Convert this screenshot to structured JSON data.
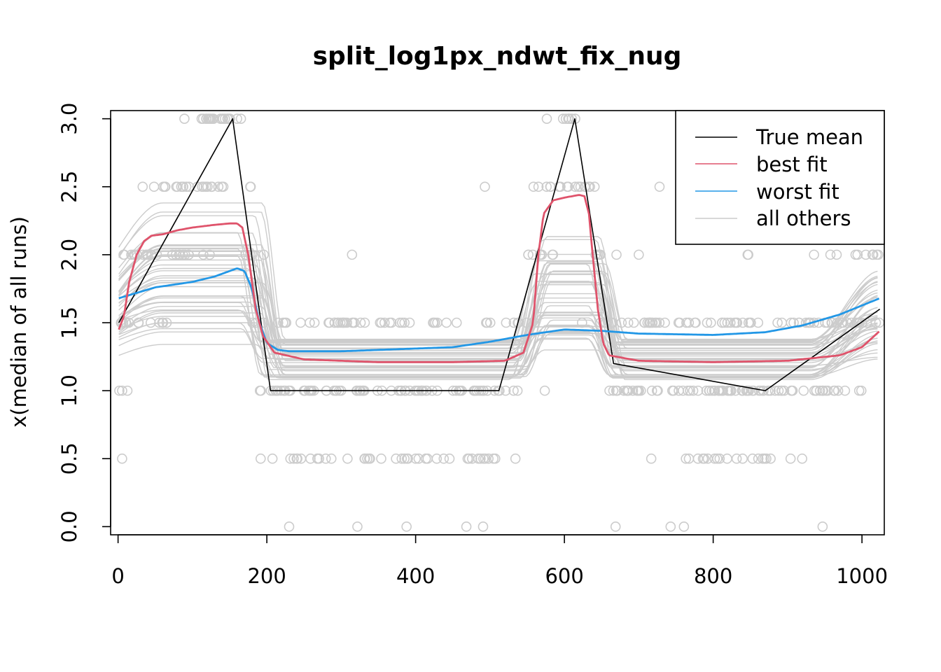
{
  "chart_data": {
    "type": "line",
    "title": "split_log1px_ndwt_fix_nug",
    "xlabel": "",
    "ylabel": "x(median of all runs)",
    "xlim": [
      -10,
      1030
    ],
    "ylim": [
      -0.06,
      3.06
    ],
    "x_ticks": [
      0,
      200,
      400,
      600,
      800,
      1000
    ],
    "y_ticks": [
      0.0,
      0.5,
      1.0,
      1.5,
      2.0,
      2.5,
      3.0
    ],
    "x_tick_labels": [
      "0",
      "200",
      "400",
      "600",
      "800",
      "1000"
    ],
    "y_tick_labels": [
      "0.0",
      "0.5",
      "1.0",
      "1.5",
      "2.0",
      "2.5",
      "3.0"
    ],
    "grid": false,
    "legend": {
      "position": "top-right",
      "entries": [
        {
          "label": "True mean",
          "color": "#000000"
        },
        {
          "label": "best fit",
          "color": "#DF536B"
        },
        {
          "label": "worst fit",
          "color": "#2297E6"
        },
        {
          "label": "all others",
          "color": "#CCCCCC"
        }
      ]
    },
    "true_mean": {
      "name": "True mean",
      "color": "#000000",
      "x": [
        1,
        154,
        205,
        512,
        614,
        666,
        870,
        1024
      ],
      "y": [
        1.5,
        3.0,
        1.0,
        1.0,
        3.0,
        1.2,
        1.0,
        1.6
      ]
    },
    "best_fit": {
      "name": "best fit",
      "color": "#DF536B",
      "x": [
        1,
        8,
        15,
        25,
        35,
        45,
        60,
        80,
        100,
        130,
        150,
        160,
        167,
        175,
        185,
        195,
        210,
        250,
        350,
        450,
        520,
        545,
        558,
        565,
        572,
        585,
        600,
        610,
        620,
        627,
        633,
        638,
        645,
        652,
        660,
        700,
        800,
        900,
        970,
        1000,
        1024
      ],
      "y": [
        1.45,
        1.55,
        1.8,
        2.0,
        2.1,
        2.14,
        2.15,
        2.18,
        2.2,
        2.22,
        2.23,
        2.23,
        2.2,
        2.0,
        1.6,
        1.4,
        1.28,
        1.23,
        1.21,
        1.21,
        1.22,
        1.28,
        1.5,
        2.0,
        2.3,
        2.4,
        2.42,
        2.43,
        2.44,
        2.43,
        2.3,
        2.0,
        1.6,
        1.35,
        1.26,
        1.22,
        1.21,
        1.22,
        1.26,
        1.32,
        1.44
      ]
    },
    "worst_fit": {
      "name": "worst fit",
      "color": "#2297E6",
      "x": [
        1,
        50,
        100,
        130,
        150,
        160,
        170,
        180,
        190,
        200,
        215,
        230,
        260,
        300,
        400,
        450,
        500,
        550,
        600,
        650,
        700,
        800,
        870,
        920,
        970,
        1024
      ],
      "y": [
        1.68,
        1.76,
        1.8,
        1.84,
        1.88,
        1.9,
        1.88,
        1.75,
        1.5,
        1.35,
        1.3,
        1.29,
        1.29,
        1.29,
        1.31,
        1.32,
        1.36,
        1.41,
        1.45,
        1.44,
        1.42,
        1.41,
        1.43,
        1.48,
        1.56,
        1.68
      ]
    },
    "others_color": "#CCCCCC",
    "point_x_range": [
      1,
      1024
    ],
    "point_values": [
      0.0,
      0.5,
      1.0,
      1.5,
      2.0,
      2.5,
      3.0
    ]
  }
}
